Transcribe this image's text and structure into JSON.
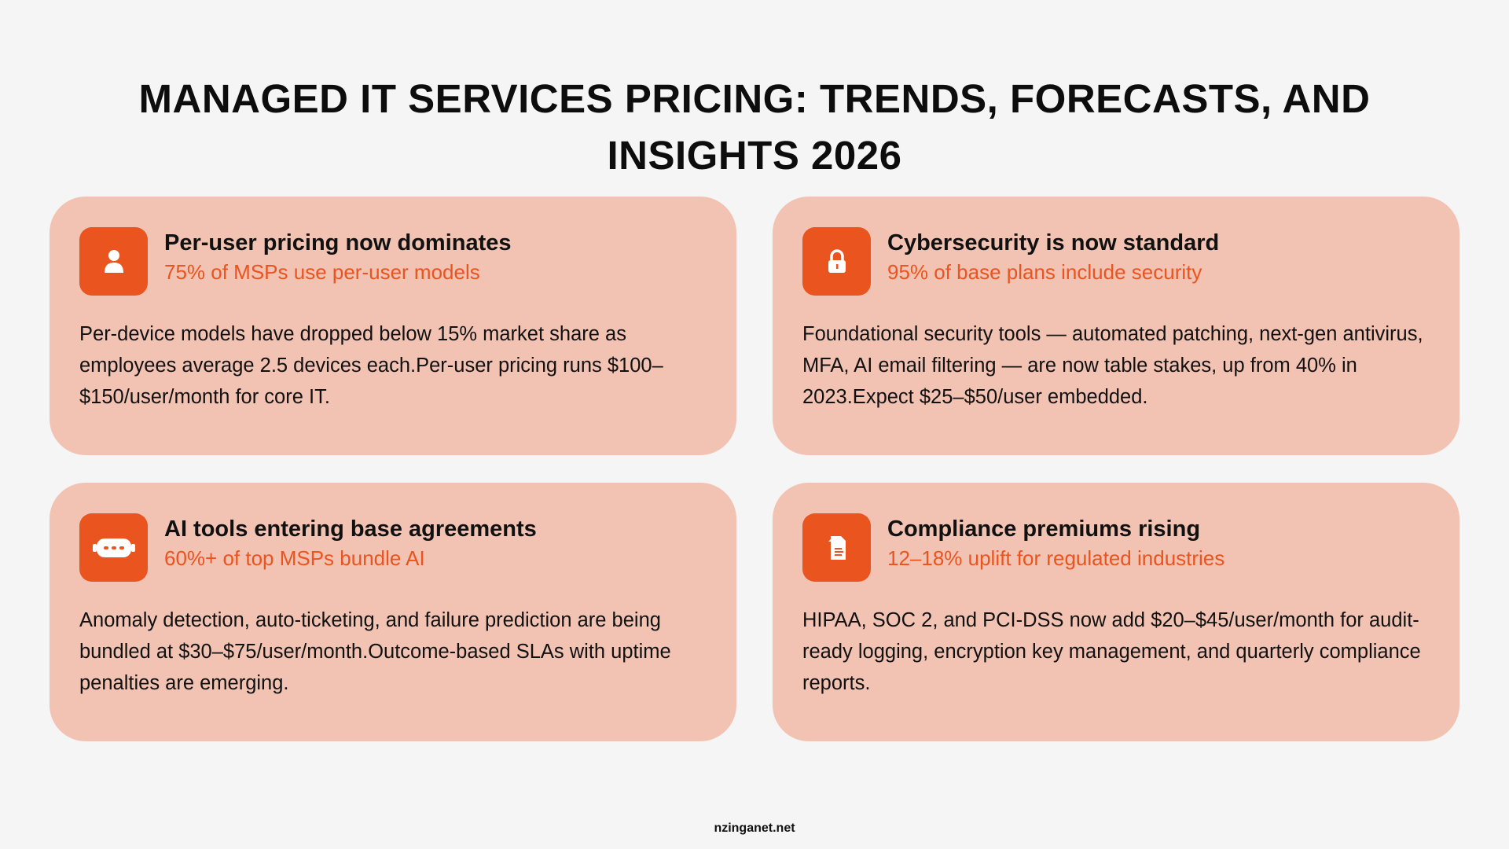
{
  "page": {
    "title_lines": [
      "MANAGED IT SERVICES PRICING: TRENDS, FORECASTS, AND",
      "INSIGHTS 2026"
    ],
    "footer": "nzinganet.net"
  },
  "colors": {
    "background": "#f5f5f5",
    "card": "#f2c2b2",
    "accent": "#e9541f"
  },
  "cards": [
    {
      "icon": "user-icon",
      "title": "Per-user pricing now dominates",
      "subtitle": "75% of MSPs use per-user models",
      "body": "Per-device models have dropped below 15% market share as employees average 2.5 devices each.Per-user pricing runs $100–$150/user/month for core IT."
    },
    {
      "icon": "lock-icon",
      "title": "Cybersecurity is now standard",
      "subtitle": "95% of base plans include security",
      "body": "Foundational security tools — automated patching, next-gen antivirus, MFA, AI email filtering — are now table stakes, up from 40% in 2023.Expect $25–$50/user embedded."
    },
    {
      "icon": "robot-icon",
      "title": "AI tools entering base agreements",
      "subtitle": "60%+ of top MSPs bundle AI",
      "body": "Anomaly detection, auto-ticketing, and failure prediction are being bundled at $30–$75/user/month.Outcome-based SLAs with uptime penalties are emerging."
    },
    {
      "icon": "document-icon",
      "title": "Compliance premiums rising",
      "subtitle": "12–18% uplift for regulated industries",
      "body": "HIPAA, SOC 2, and PCI-DSS now add $20–$45/user/month for audit-ready logging, encryption key management, and quarterly compliance reports."
    }
  ]
}
